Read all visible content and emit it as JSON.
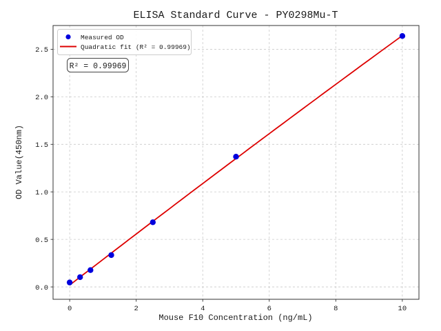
{
  "chart_data": {
    "type": "scatter",
    "title": "ELISA Standard Curve - PY0298Mu-T",
    "xlabel": "Mouse F10 Concentration (ng/mL)",
    "ylabel": "OD Value(450nm)",
    "xlim": [
      -0.5,
      10.5
    ],
    "ylim": [
      -0.13,
      2.75
    ],
    "xtick_values": [
      0,
      2,
      4,
      6,
      8,
      10
    ],
    "xtick_labels": [
      "0",
      "2",
      "4",
      "6",
      "8",
      "10"
    ],
    "ytick_values": [
      0.0,
      0.5,
      1.0,
      1.5,
      2.0,
      2.5
    ],
    "ytick_labels": [
      "0.0",
      "0.5",
      "1.0",
      "1.5",
      "2.0",
      "2.5"
    ],
    "grid": {
      "show": true,
      "style": "dashed",
      "color": "#c9c9c9"
    },
    "series": [
      {
        "name": "Measured OD",
        "type": "scatter",
        "color": "#0000dd",
        "x": [
          0,
          0.3125,
          0.625,
          1.25,
          2.5,
          5,
          10
        ],
        "y": [
          0.047,
          0.103,
          0.177,
          0.335,
          0.68,
          1.37,
          2.64
        ]
      },
      {
        "name": "Quadratic fit (R² = 0.99969)",
        "type": "quadratic-fit",
        "color": "#dd0000",
        "fit_degree": 2,
        "fit_range": [
          0,
          10
        ],
        "r_squared": 0.99969
      }
    ],
    "legend": {
      "position": "upper-left"
    },
    "annotation": {
      "text": "R² = 0.99969"
    },
    "colors": {
      "spine": "#333333",
      "grid": "#c9c9c9",
      "scatter": "#0000dd",
      "fit_line": "#dd0000",
      "legend_border": "#cccccc",
      "annotation_border": "#444444"
    }
  }
}
